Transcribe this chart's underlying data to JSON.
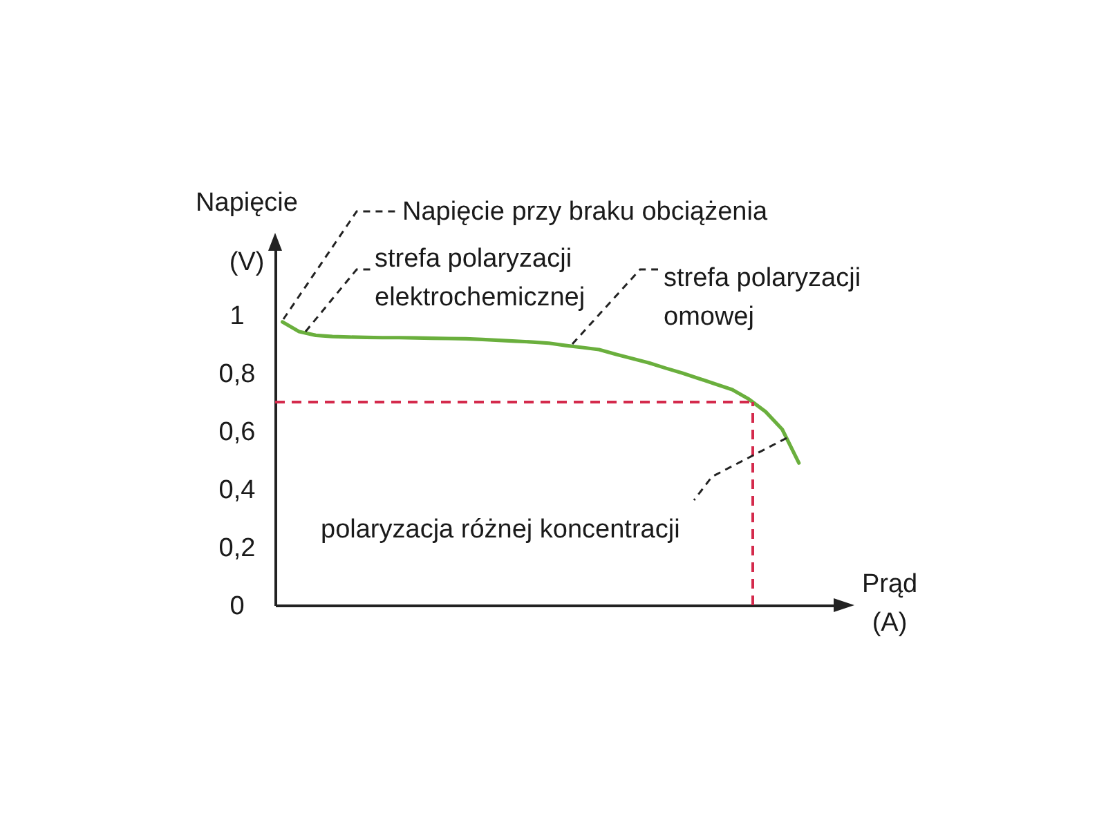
{
  "chart_data": {
    "type": "line",
    "xlabel": "Prąd (A)",
    "ylabel": "Napięcie (V)",
    "categories": [
      null,
      null,
      null,
      null,
      null,
      null,
      null,
      null,
      null,
      null,
      null,
      null,
      null,
      null,
      null,
      null,
      null,
      null,
      null,
      null,
      null,
      null,
      null,
      null,
      null,
      null,
      null,
      null,
      null,
      null,
      null,
      null
    ],
    "ylim": [
      0,
      1.25
    ],
    "yticks": [
      0,
      {
        "value": 0.2,
        "label": "0,2"
      },
      {
        "value": 0.4,
        "label": "0,4"
      },
      {
        "value": 0.6,
        "label": "0,6"
      },
      {
        "value": 0.8,
        "label": "0,8"
      },
      1
    ],
    "series": [
      {
        "color": "#6aaf3d",
        "values": [
          0.976,
          0.943,
          0.93,
          0.926,
          0.924,
          0.923,
          0.922,
          0.922,
          0.921,
          0.92,
          0.919,
          0.918,
          0.916,
          0.913,
          0.91,
          0.907,
          0.903,
          0.895,
          0.888,
          0.881,
          0.865,
          0.85,
          0.835,
          0.817,
          0.8,
          0.781,
          0.762,
          0.743,
          0.71,
          0.667,
          0.606,
          0.49
        ]
      }
    ],
    "ref_lines": [
      {
        "axis": "y",
        "value": 0.7,
        "color": "#d42a4c",
        "line_style": "dashed"
      }
    ],
    "annotations": [
      "Napięcie przy braku obciążenia",
      "strefa polaryzacji elektrochemicznej",
      "strefa polaryzacji omowej",
      "polaryzacja różnej koncentracji"
    ],
    "line_style": "solid"
  }
}
